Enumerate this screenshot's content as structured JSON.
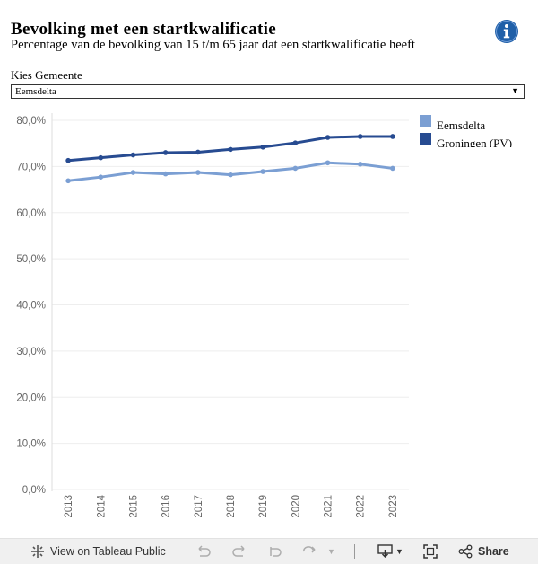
{
  "header": {
    "title": "Bevolking met een startkwalificatie",
    "subtitle": "Percentage van de bevolking van 15 t/m 65 jaar dat een startkwalificatie heeft"
  },
  "filter": {
    "label": "Kies Gemeente",
    "value": "Eemsdelta"
  },
  "colors": {
    "eemsdelta": "#7b9fd3",
    "groningen": "#274b91",
    "grid": "#eeeeee",
    "axis": "#666666"
  },
  "chart_data": {
    "type": "line",
    "title": "",
    "xlabel": "",
    "ylabel": "",
    "x": [
      "2013",
      "2014",
      "2015",
      "2016",
      "2017",
      "2018",
      "2019",
      "2020",
      "2021",
      "2022",
      "2023"
    ],
    "ylim": [
      0,
      80
    ],
    "yticks": [
      0,
      10,
      20,
      30,
      40,
      50,
      60,
      70,
      80
    ],
    "ytick_labels": [
      "0,0%",
      "10,0%",
      "20,0%",
      "30,0%",
      "40,0%",
      "50,0%",
      "60,0%",
      "70,0%",
      "80,0%"
    ],
    "legend_position": "top-right",
    "series": [
      {
        "name": "Eemsdelta",
        "color": "#7b9fd3",
        "values": [
          66.9,
          67.7,
          68.7,
          68.4,
          68.7,
          68.2,
          68.9,
          69.6,
          70.8,
          70.5,
          69.6
        ]
      },
      {
        "name": "Groningen (PV)",
        "color": "#274b91",
        "values": [
          71.3,
          71.9,
          72.5,
          73.0,
          73.1,
          73.7,
          74.2,
          75.1,
          76.3,
          76.5,
          76.5
        ]
      }
    ]
  },
  "toolbar": {
    "view_label": "View on Tableau Public",
    "share_label": "Share"
  }
}
